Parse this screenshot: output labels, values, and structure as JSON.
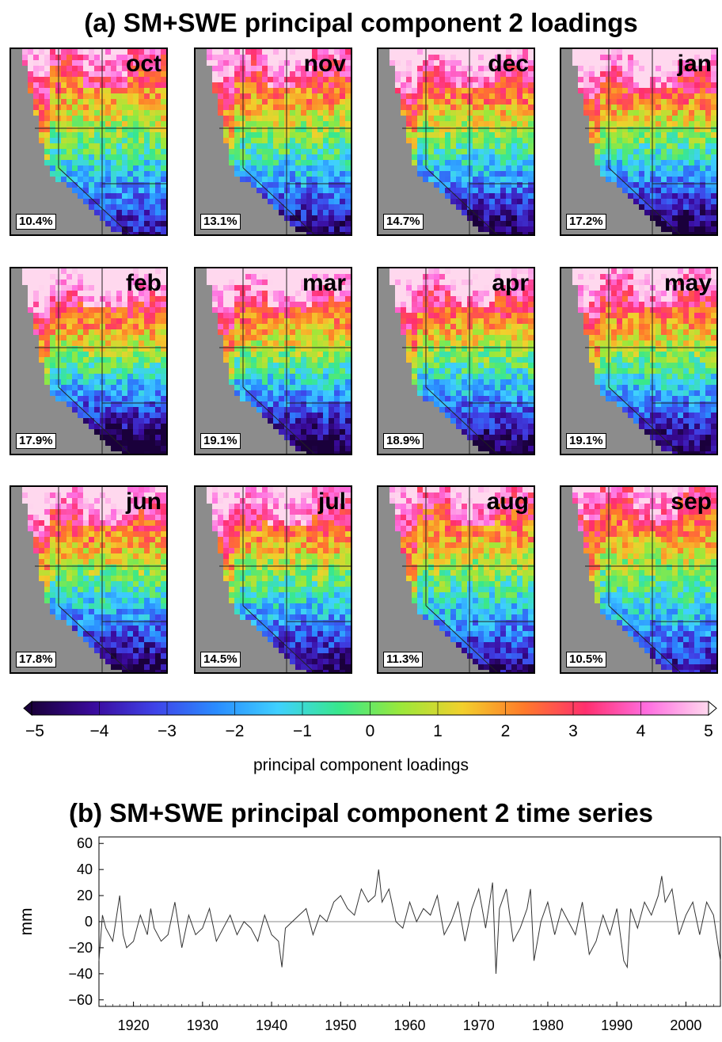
{
  "title_a": "(a) SM+SWE principal component 2 loadings",
  "title_b": "(b) SM+SWE principal component 2 time series",
  "colorbar": {
    "label": "principal component loadings",
    "ticks": [
      "−5",
      "−4",
      "−3",
      "−2",
      "−1",
      "0",
      "1",
      "2",
      "3",
      "4",
      "5"
    ],
    "stops": [
      "#1a003b",
      "#3a0a9c",
      "#3f43e8",
      "#2a8cff",
      "#3fd0ff",
      "#38e88c",
      "#9be83a",
      "#f2d02c",
      "#ff7a2a",
      "#ff2f6e",
      "#ff6ee0",
      "#ffd8ee"
    ]
  },
  "maps": [
    {
      "month": "oct",
      "pct": "10.4%",
      "strength": 0.85
    },
    {
      "month": "nov",
      "pct": "13.1%",
      "strength": 0.95
    },
    {
      "month": "dec",
      "pct": "14.7%",
      "strength": 1.05
    },
    {
      "month": "jan",
      "pct": "17.2%",
      "strength": 1.1
    },
    {
      "month": "feb",
      "pct": "17.9%",
      "strength": 1.2
    },
    {
      "month": "mar",
      "pct": "19.1%",
      "strength": 1.15
    },
    {
      "month": "apr",
      "pct": "18.9%",
      "strength": 1.1
    },
    {
      "month": "may",
      "pct": "19.1%",
      "strength": 1.05
    },
    {
      "month": "jun",
      "pct": "17.8%",
      "strength": 1.05
    },
    {
      "month": "jul",
      "pct": "14.5%",
      "strength": 1.0
    },
    {
      "month": "aug",
      "pct": "11.3%",
      "strength": 0.9
    },
    {
      "month": "sep",
      "pct": "10.5%",
      "strength": 0.85
    }
  ],
  "chart_data": {
    "type": "line",
    "title": "(b) SM+SWE principal component 2 time series",
    "ylabel": "mm",
    "xlabel": "",
    "xlim": [
      1915,
      2005
    ],
    "ylim": [
      -65,
      65
    ],
    "yticks": [
      -60,
      -40,
      -20,
      0,
      20,
      40,
      60
    ],
    "xticks": [
      1920,
      1930,
      1940,
      1950,
      1960,
      1970,
      1980,
      1990,
      2000
    ],
    "series": [
      {
        "x": [
          1915,
          1915.5,
          1916,
          1917,
          1918,
          1918.5,
          1919,
          1920,
          1921,
          1922,
          1922.5,
          1923,
          1924,
          1925,
          1926,
          1927,
          1928,
          1929,
          1930,
          1931,
          1932,
          1933,
          1934,
          1935,
          1936,
          1937,
          1938,
          1939,
          1940,
          1941,
          1941.5,
          1942,
          1943,
          1944,
          1945,
          1946,
          1947,
          1948,
          1949,
          1950,
          1951,
          1952,
          1953,
          1954,
          1955,
          1955.5,
          1956,
          1957,
          1958,
          1959,
          1960,
          1961,
          1962,
          1963,
          1964,
          1965,
          1966,
          1967,
          1968,
          1969,
          1970,
          1971,
          1972,
          1972.5,
          1973,
          1974,
          1975,
          1976,
          1977,
          1977.5,
          1978,
          1979,
          1980,
          1981,
          1982,
          1983,
          1984,
          1985,
          1986,
          1987,
          1988,
          1989,
          1990,
          1991,
          1991.5,
          1992,
          1993,
          1994,
          1995,
          1996,
          1996.5,
          1997,
          1998,
          1999,
          2000,
          2001,
          2002,
          2003,
          2004,
          2005
        ],
        "y": [
          -30,
          5,
          -5,
          -15,
          20,
          -10,
          -20,
          -15,
          5,
          -10,
          10,
          -5,
          -15,
          -10,
          15,
          -20,
          5,
          -10,
          -5,
          10,
          -15,
          -5,
          5,
          -10,
          0,
          -5,
          -15,
          5,
          -10,
          -15,
          -35,
          -5,
          0,
          5,
          10,
          -10,
          5,
          0,
          15,
          20,
          10,
          5,
          25,
          15,
          20,
          40,
          15,
          25,
          0,
          -5,
          15,
          0,
          10,
          5,
          20,
          -10,
          0,
          15,
          -15,
          10,
          25,
          -5,
          30,
          -40,
          10,
          25,
          -15,
          -5,
          10,
          25,
          -30,
          0,
          15,
          -10,
          10,
          0,
          -10,
          15,
          -25,
          -15,
          5,
          -10,
          10,
          -30,
          -35,
          10,
          -5,
          15,
          5,
          20,
          35,
          15,
          25,
          -10,
          5,
          15,
          -10,
          15,
          5,
          -30
        ]
      }
    ],
    "grid": false,
    "legend": "none"
  }
}
